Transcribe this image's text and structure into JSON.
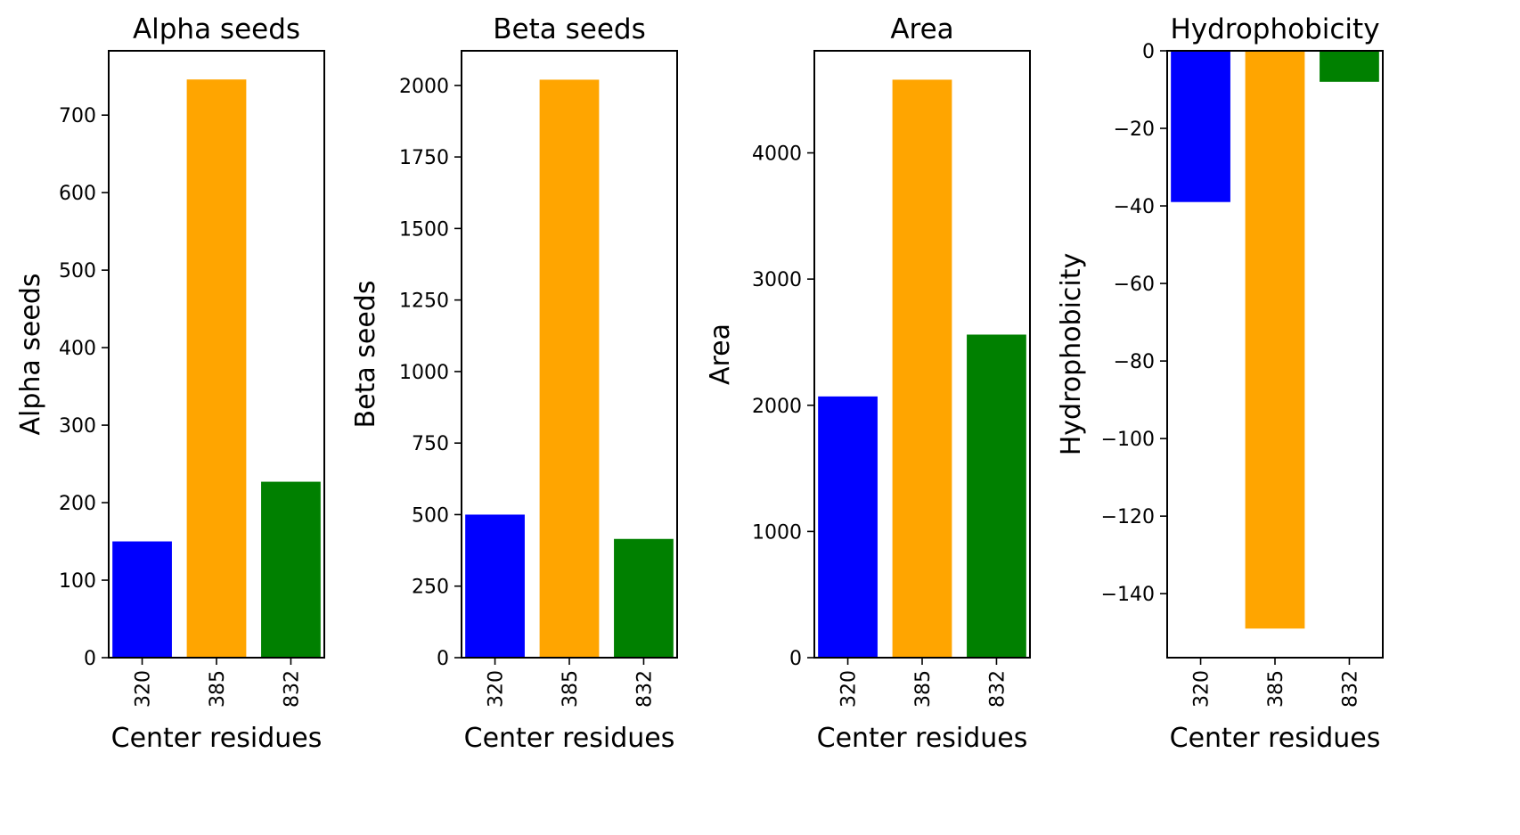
{
  "chart_data": [
    {
      "type": "bar",
      "title": "Alpha seeds",
      "xlabel": "Center residues",
      "ylabel": "Alpha seeds",
      "categories": [
        "320",
        "385",
        "832"
      ],
      "values": [
        150,
        746,
        227
      ],
      "colors": [
        "#0000ff",
        "#ffa500",
        "#008000"
      ],
      "ylim": [
        0,
        783
      ],
      "yticks": [
        0,
        100,
        200,
        300,
        400,
        500,
        600,
        700
      ],
      "ytick_labels": [
        "0",
        "100",
        "200",
        "300",
        "400",
        "500",
        "600",
        "700"
      ],
      "grid": false
    },
    {
      "type": "bar",
      "title": "Beta seeds",
      "xlabel": "Center residues",
      "ylabel": "Beta seeds",
      "categories": [
        "320",
        "385",
        "832"
      ],
      "values": [
        500,
        2020,
        415
      ],
      "colors": [
        "#0000ff",
        "#ffa500",
        "#008000"
      ],
      "ylim": [
        0,
        2121
      ],
      "yticks": [
        0,
        250,
        500,
        750,
        1000,
        1250,
        1500,
        1750,
        2000
      ],
      "ytick_labels": [
        "0",
        "250",
        "500",
        "750",
        "1000",
        "1250",
        "1500",
        "1750",
        "2000"
      ],
      "grid": false
    },
    {
      "type": "bar",
      "title": "Area",
      "xlabel": "Center residues",
      "ylabel": "Area",
      "categories": [
        "320",
        "385",
        "832"
      ],
      "values": [
        2070,
        4580,
        2560
      ],
      "colors": [
        "#0000ff",
        "#ffa500",
        "#008000"
      ],
      "ylim": [
        0,
        4809
      ],
      "yticks": [
        0,
        1000,
        2000,
        3000,
        4000
      ],
      "ytick_labels": [
        "0",
        "1000",
        "2000",
        "3000",
        "4000"
      ],
      "grid": false
    },
    {
      "type": "bar",
      "title": "Hydrophobicity",
      "xlabel": "Center residues",
      "ylabel": "Hydrophobicity",
      "categories": [
        "320",
        "385",
        "832"
      ],
      "values": [
        -39,
        -149,
        -8
      ],
      "colors": [
        "#0000ff",
        "#ffa500",
        "#008000"
      ],
      "ylim": [
        -156.5,
        0
      ],
      "yticks": [
        0,
        -20,
        -40,
        -60,
        -80,
        -100,
        -120,
        -140
      ],
      "ytick_labels": [
        "0",
        "−20",
        "−40",
        "−60",
        "−80",
        "−100",
        "−120",
        "−140"
      ],
      "grid": false
    }
  ]
}
